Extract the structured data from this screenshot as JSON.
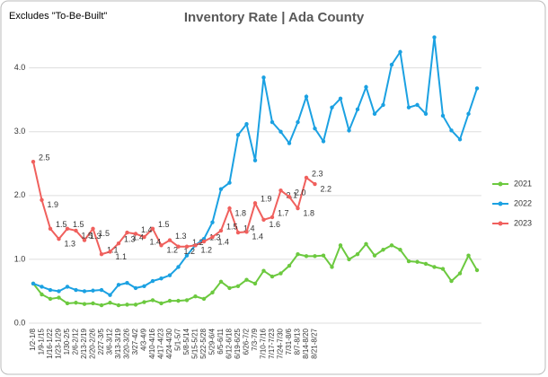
{
  "chart_data": {
    "type": "line",
    "title": "Inventory Rate | Ada County",
    "annotation": "Excludes \"To-Be-Built\"",
    "categories": [
      "1/2-1/8",
      "1/9-1/15",
      "1/16-1/22",
      "1/23-1/29",
      "1/30-2/5",
      "2/6-2/12",
      "2/13-2/19",
      "2/20-2/26",
      "2/27-3/5",
      "3/6-3/12",
      "3/13-3/19",
      "3/20-3/26",
      "3/27-4/2",
      "4/3-4/9",
      "4/10-4/16",
      "4/17-4/23",
      "4/24-4/30",
      "5/1-5/7",
      "5/8-5/14",
      "5/15-5/21",
      "5/22-5/28",
      "5/29-6/4",
      "6/5-6/11",
      "6/12-6/18",
      "6/19-6/25",
      "6/26-7/2",
      "7/3-7/9",
      "7/10-7/16",
      "7/17-7/23",
      "7/24-7/30",
      "7/31-8/6",
      "8/7-8/13",
      "8/14-8/20",
      "8/21-8/27",
      null,
      null,
      null,
      null,
      null,
      null,
      null,
      null,
      null,
      null,
      null,
      null,
      null,
      null,
      null,
      null,
      null,
      null,
      null
    ],
    "series": [
      {
        "name": "2021",
        "color": "#6cc93f",
        "values": [
          0.62,
          0.45,
          0.38,
          0.4,
          0.31,
          0.32,
          0.3,
          0.31,
          0.28,
          0.32,
          0.28,
          0.29,
          0.29,
          0.33,
          0.36,
          0.31,
          0.35,
          0.35,
          0.36,
          0.42,
          0.38,
          0.48,
          0.65,
          0.55,
          0.58,
          0.68,
          0.62,
          0.82,
          0.73,
          0.78,
          0.9,
          1.08,
          1.05,
          1.05,
          1.06,
          0.88,
          1.22,
          1.0,
          1.08,
          1.24,
          1.06,
          1.15,
          1.22,
          1.15,
          0.97,
          0.96,
          0.93,
          0.88,
          0.85,
          0.66,
          0.78,
          1.06,
          0.83
        ]
      },
      {
        "name": "2022",
        "color": "#1ba1e2",
        "values": [
          0.62,
          0.57,
          0.52,
          0.5,
          0.57,
          0.52,
          0.5,
          0.51,
          0.52,
          0.44,
          0.6,
          0.63,
          0.55,
          0.58,
          0.66,
          0.7,
          0.75,
          0.88,
          1.06,
          1.22,
          1.32,
          1.58,
          2.1,
          2.2,
          2.95,
          3.12,
          2.55,
          3.85,
          3.15,
          3.0,
          2.82,
          3.15,
          3.55,
          3.05,
          2.85,
          3.38,
          3.52,
          3.02,
          3.35,
          3.7,
          3.28,
          3.42,
          4.05,
          4.25,
          3.38,
          3.42,
          3.28,
          4.48,
          3.25,
          3.02,
          2.88,
          3.28,
          3.68
        ]
      },
      {
        "name": "2023",
        "color": "#f0605d",
        "values": [
          2.53,
          1.93,
          1.48,
          1.32,
          1.48,
          1.45,
          1.3,
          1.48,
          1.08,
          1.12,
          1.25,
          1.42,
          1.4,
          1.35,
          1.48,
          1.22,
          1.3,
          1.2,
          1.2,
          1.22,
          1.28,
          1.35,
          1.45,
          1.8,
          1.42,
          1.43,
          1.88,
          1.62,
          1.66,
          2.08,
          1.98,
          1.8,
          2.28,
          2.18,
          null,
          null,
          null,
          null,
          null,
          null,
          null,
          null,
          null,
          null,
          null,
          null,
          null,
          null,
          null,
          null,
          null,
          null,
          null
        ],
        "value_labels": [
          "2.5",
          "1.9",
          "1.5",
          "1.3",
          "1.5",
          "1.5",
          "1.3",
          "1.5",
          "1.1",
          "1.1",
          "1.3",
          "1.4",
          "1.4",
          "1.4",
          "1.5",
          "1.2",
          "1.3",
          "1.2",
          "1.2",
          "1.2",
          "1.3",
          "1.4",
          "1.5",
          "1.8",
          "1.4",
          "1.4",
          "1.9",
          "1.6",
          "1.7",
          "2.1",
          "2.0",
          "1.8",
          "2.3",
          "2.2",
          null,
          null,
          null,
          null,
          null,
          null,
          null,
          null,
          null,
          null,
          null,
          null,
          null,
          null,
          null,
          null,
          null,
          null,
          null
        ]
      }
    ],
    "ylim": [
      0,
      4.6
    ],
    "yticks": [
      {
        "value": 0,
        "label": "0.0"
      },
      {
        "value": 1,
        "label": "1.0"
      },
      {
        "value": 2,
        "label": "2.0"
      },
      {
        "value": 3,
        "label": "3.0"
      },
      {
        "value": 4,
        "label": "4.0"
      }
    ],
    "grid": true,
    "legend": "right"
  }
}
